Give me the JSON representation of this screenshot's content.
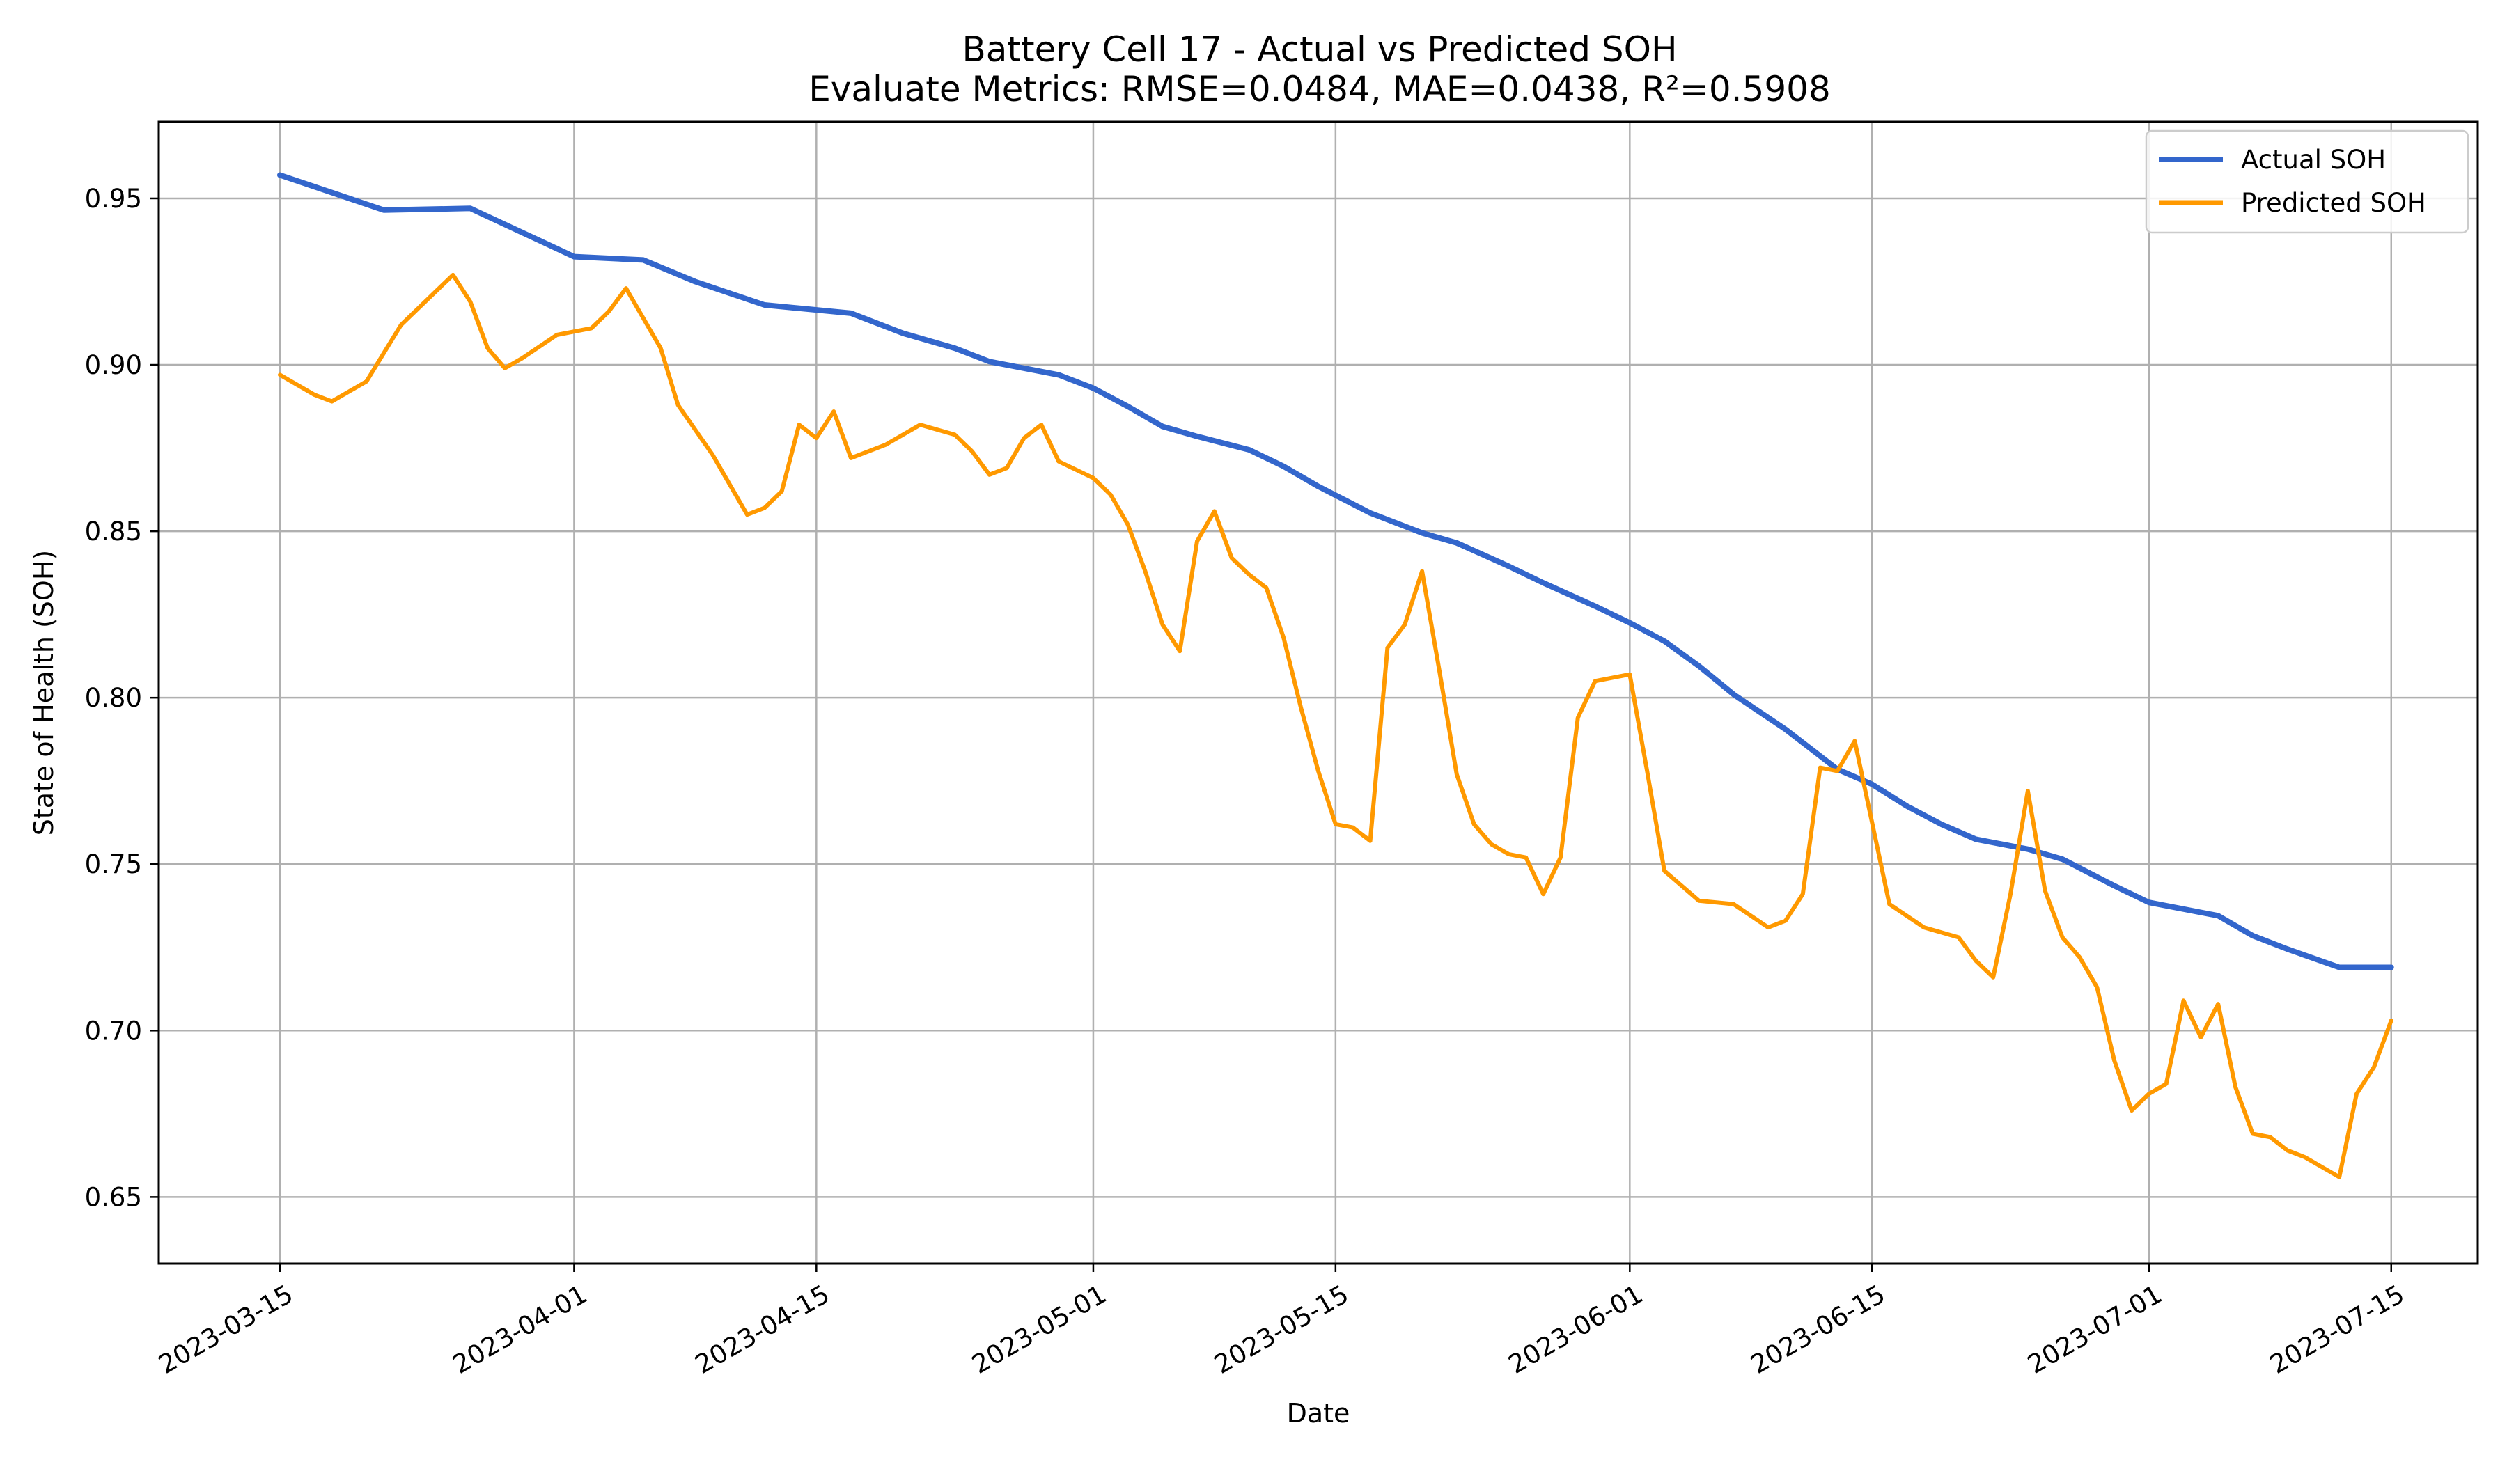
{
  "chart_data": {
    "type": "line",
    "title": "Battery Cell 17 - Actual vs Predicted SOH",
    "subtitle": "Evaluate Metrics: RMSE=0.0484, MAE=0.0438, R²=0.5908",
    "xlabel": "Date",
    "ylabel": "State of Health (SOH)",
    "grid": true,
    "legend_position": "top-right",
    "xlim": [
      "2023-03-08",
      "2023-07-20"
    ],
    "ylim": [
      0.63,
      0.973
    ],
    "x_ticks": [
      "2023-03-15",
      "2023-04-01",
      "2023-04-15",
      "2023-05-01",
      "2023-05-15",
      "2023-06-01",
      "2023-06-15",
      "2023-07-01",
      "2023-07-15"
    ],
    "y_ticks": [
      "0.65",
      "0.70",
      "0.75",
      "0.80",
      "0.85",
      "0.90",
      "0.95"
    ],
    "series": [
      {
        "name": "Actual SOH",
        "color": "#3366cc",
        "x": [
          "2023-03-15",
          "2023-03-21",
          "2023-03-26",
          "2023-04-01",
          "2023-04-05",
          "2023-04-08",
          "2023-04-12",
          "2023-04-17",
          "2023-04-20",
          "2023-04-23",
          "2023-04-25",
          "2023-04-29",
          "2023-05-01",
          "2023-05-03",
          "2023-05-05",
          "2023-05-07",
          "2023-05-10",
          "2023-05-12",
          "2023-05-14",
          "2023-05-17",
          "2023-05-20",
          "2023-05-22",
          "2023-05-25",
          "2023-05-27",
          "2023-05-30",
          "2023-06-01",
          "2023-06-03",
          "2023-06-05",
          "2023-06-07",
          "2023-06-10",
          "2023-06-13",
          "2023-06-15",
          "2023-06-17",
          "2023-06-19",
          "2023-06-21",
          "2023-06-24",
          "2023-06-26",
          "2023-06-29",
          "2023-07-01",
          "2023-07-05",
          "2023-07-07",
          "2023-07-09",
          "2023-07-12",
          "2023-07-15"
        ],
        "y": [
          0.957,
          0.9465,
          0.947,
          0.9325,
          0.9315,
          0.925,
          0.918,
          0.9155,
          0.9095,
          0.905,
          0.901,
          0.897,
          0.893,
          0.8875,
          0.8815,
          0.8785,
          0.8745,
          0.8695,
          0.8635,
          0.8555,
          0.8495,
          0.8465,
          0.8395,
          0.8345,
          0.8275,
          0.8225,
          0.817,
          0.8095,
          0.801,
          0.7905,
          0.7785,
          0.774,
          0.7675,
          0.762,
          0.7575,
          0.7545,
          0.7515,
          0.7435,
          0.7385,
          0.7345,
          0.7285,
          0.7245,
          0.719,
          0.719
        ]
      },
      {
        "name": "Predicted SOH",
        "color": "#ff9900",
        "x": [
          "2023-03-15",
          "2023-03-17",
          "2023-03-18",
          "2023-03-20",
          "2023-03-22",
          "2023-03-24",
          "2023-03-25",
          "2023-03-26",
          "2023-03-27",
          "2023-03-28",
          "2023-03-29",
          "2023-03-31",
          "2023-04-02",
          "2023-04-03",
          "2023-04-04",
          "2023-04-06",
          "2023-04-07",
          "2023-04-09",
          "2023-04-10",
          "2023-04-11",
          "2023-04-12",
          "2023-04-13",
          "2023-04-14",
          "2023-04-15",
          "2023-04-16",
          "2023-04-17",
          "2023-04-19",
          "2023-04-21",
          "2023-04-23",
          "2023-04-24",
          "2023-04-25",
          "2023-04-26",
          "2023-04-27",
          "2023-04-28",
          "2023-04-29",
          "2023-05-01",
          "2023-05-02",
          "2023-05-03",
          "2023-05-04",
          "2023-05-05",
          "2023-05-06",
          "2023-05-07",
          "2023-05-08",
          "2023-05-09",
          "2023-05-10",
          "2023-05-11",
          "2023-05-12",
          "2023-05-13",
          "2023-05-14",
          "2023-05-15",
          "2023-05-16",
          "2023-05-17",
          "2023-05-18",
          "2023-05-19",
          "2023-05-20",
          "2023-05-21",
          "2023-05-22",
          "2023-05-23",
          "2023-05-24",
          "2023-05-25",
          "2023-05-26",
          "2023-05-27",
          "2023-05-28",
          "2023-05-29",
          "2023-05-30",
          "2023-06-01",
          "2023-06-02",
          "2023-06-03",
          "2023-06-05",
          "2023-06-07",
          "2023-06-09",
          "2023-06-10",
          "2023-06-11",
          "2023-06-12",
          "2023-06-13",
          "2023-06-14",
          "2023-06-16",
          "2023-06-18",
          "2023-06-20",
          "2023-06-21",
          "2023-06-22",
          "2023-06-23",
          "2023-06-24",
          "2023-06-25",
          "2023-06-26",
          "2023-06-27",
          "2023-06-28",
          "2023-06-29",
          "2023-06-30",
          "2023-07-01",
          "2023-07-02",
          "2023-07-03",
          "2023-07-04",
          "2023-07-05",
          "2023-07-06",
          "2023-07-07",
          "2023-07-08",
          "2023-07-09",
          "2023-07-10",
          "2023-07-11",
          "2023-07-12",
          "2023-07-13",
          "2023-07-14",
          "2023-07-15"
        ],
        "y": [
          0.897,
          0.891,
          0.889,
          0.895,
          0.912,
          0.922,
          0.927,
          0.919,
          0.905,
          0.899,
          0.902,
          0.909,
          0.911,
          0.916,
          0.923,
          0.905,
          0.888,
          0.873,
          0.864,
          0.855,
          0.857,
          0.862,
          0.882,
          0.878,
          0.886,
          0.872,
          0.876,
          0.882,
          0.879,
          0.874,
          0.867,
          0.869,
          0.878,
          0.882,
          0.871,
          0.866,
          0.861,
          0.852,
          0.838,
          0.822,
          0.814,
          0.847,
          0.856,
          0.842,
          0.837,
          0.833,
          0.818,
          0.797,
          0.778,
          0.762,
          0.761,
          0.757,
          0.815,
          0.822,
          0.838,
          0.808,
          0.777,
          0.762,
          0.756,
          0.753,
          0.752,
          0.741,
          0.752,
          0.794,
          0.805,
          0.807,
          0.778,
          0.748,
          0.739,
          0.738,
          0.731,
          0.733,
          0.741,
          0.779,
          0.778,
          0.787,
          0.738,
          0.731,
          0.728,
          0.721,
          0.716,
          0.741,
          0.772,
          0.742,
          0.728,
          0.722,
          0.713,
          0.691,
          0.676,
          0.681,
          0.684,
          0.709,
          0.698,
          0.708,
          0.683,
          0.669,
          0.668,
          0.664,
          0.662,
          0.659,
          0.656,
          0.681,
          0.689,
          0.703
        ]
      }
    ]
  }
}
